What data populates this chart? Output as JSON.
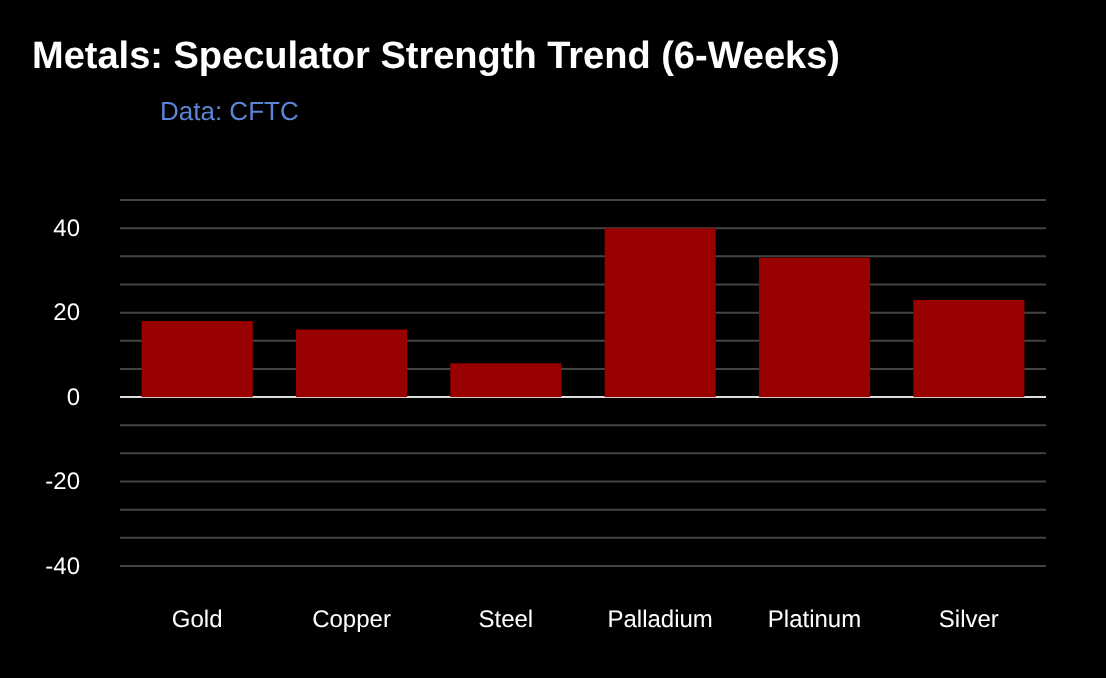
{
  "chart_data": {
    "type": "bar",
    "title": "Metals: Speculator Strength Trend (6-Weeks)",
    "annotations": [
      "Data: CFTC"
    ],
    "categories": [
      "Gold",
      "Copper",
      "Steel",
      "Palladium",
      "Platinum",
      "Silver"
    ],
    "series": [
      {
        "color": "#990000",
        "values": [
          18,
          16,
          8,
          40,
          33,
          23
        ]
      }
    ],
    "ylim": [
      -40,
      46.67
    ],
    "yticks": [
      -40,
      {
        "value": -33.33,
        "label": null
      },
      {
        "value": -26.67,
        "label": null
      },
      -20,
      {
        "value": -13.33,
        "label": null
      },
      {
        "value": -6.67,
        "label": null
      },
      0,
      {
        "value": 6.67,
        "label": null
      },
      {
        "value": 13.33,
        "label": null
      },
      20,
      {
        "value": 26.67,
        "label": null
      },
      {
        "value": 33.33,
        "label": null
      },
      40,
      {
        "value": 46.67,
        "label": null
      }
    ],
    "grid": "y"
  }
}
